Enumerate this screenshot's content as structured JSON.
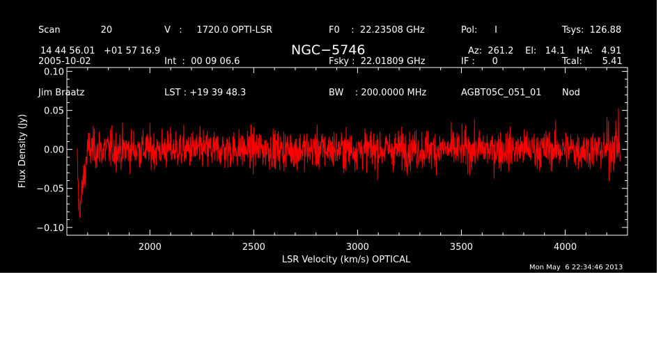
{
  "header": {
    "col1": {
      "scan_label": "Scan",
      "scan_value": "20",
      "date": "2005-10-02",
      "observer": "Jim Braatz"
    },
    "col2": {
      "velocity": "V   :     1720.0 OPTI-LSR",
      "int": "Int  :  00 09 06.6",
      "lst": "LST : +19 39 48.3"
    },
    "col3": {
      "f0": "F0    :  22.23508 GHz",
      "fsky": "Fsky :  22.01809 GHz",
      "bw": "BW    : 200.0000 MHz"
    },
    "col4": {
      "pol": "Pol:      I",
      "if": "IF :      0",
      "project": "AGBT05C_051_01"
    },
    "col5": {
      "tsys": "Tsys:  126.88",
      "tcal": "Tcal:       5.41",
      "mode": "Nod"
    },
    "coords": "14 44 56.01   +01 57 16.9",
    "source": "NGC−5746",
    "azel": "Az:  261.2    El:   14.1    HA:   4.91"
  },
  "timestamp": "Mon May  6 22:34:46 2013",
  "chart_data": {
    "type": "line",
    "xlabel": "LSR Velocity (km/s) OPTICAL",
    "ylabel": "Flux Density (Jy)",
    "xlim": [
      1600,
      4300
    ],
    "ylim": [
      -0.11,
      0.105
    ],
    "x_ticks": [
      2000,
      2500,
      3000,
      3500,
      4000
    ],
    "y_ticks": [
      -0.1,
      -0.05,
      0.0,
      0.05,
      0.1
    ],
    "x_tick_labels": [
      "2000",
      "2500",
      "3000",
      "3500",
      "4000"
    ],
    "y_tick_labels": [
      "−0.10",
      "−0.05",
      "0.00",
      "0.05",
      "0.10"
    ],
    "color": "#ff0000",
    "series": [
      {
        "x_start": 1650,
        "x_end": 4265,
        "n_points": 1800,
        "noise_rms": 0.02,
        "description_points": [
          {
            "x": 1650,
            "y": -0.015
          },
          {
            "x": 1660,
            "y": -0.085
          },
          {
            "x": 1675,
            "y": -0.05
          },
          {
            "x": 1700,
            "y": 0.0
          },
          {
            "x": 3000,
            "y": 0.0
          },
          {
            "x": 4200,
            "y": 0.0
          },
          {
            "x": 4260,
            "y": 0.01
          }
        ]
      }
    ]
  }
}
